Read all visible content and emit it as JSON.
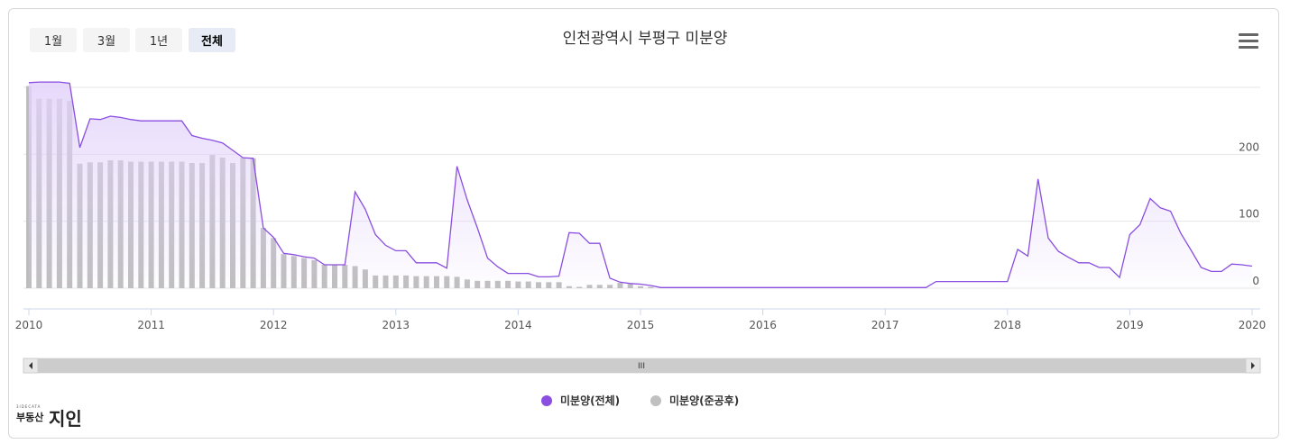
{
  "range_selector": {
    "buttons": [
      {
        "label": "1월",
        "active": false
      },
      {
        "label": "3월",
        "active": false
      },
      {
        "label": "1년",
        "active": false
      },
      {
        "label": "전체",
        "active": true
      }
    ]
  },
  "title": "인천광역시 부평구 미분양",
  "menu_icon": "hamburger-menu-icon",
  "navigator": {
    "handle_label": "III"
  },
  "logo": {
    "small_text": "3IDECATA",
    "main_text": "부동산",
    "big_text": "지인"
  },
  "colors": {
    "total_line": "#8a4ee0",
    "total_fill": "#e2d2fa",
    "completed_bar": "#bdbdbd",
    "completed_dot": "#c0c0c0",
    "total_dot": "#8a4ee0"
  },
  "chart_data": {
    "type": "area",
    "title": "인천광역시 부평구 미분양",
    "x_axis": {
      "type": "date",
      "range": [
        "2010-01",
        "2020-01"
      ],
      "tick_labels": [
        "2010",
        "2011",
        "2012",
        "2013",
        "2014",
        "2015",
        "2016",
        "2017",
        "2018",
        "2019",
        "2020"
      ]
    },
    "y_axis": {
      "side": "right",
      "range": [
        0,
        300
      ],
      "tick_labels": [
        "0",
        "100",
        "200"
      ],
      "ticks": [
        0,
        100,
        200,
        300
      ],
      "grid": true
    },
    "legend": {
      "placement": "bottom-center"
    },
    "series": [
      {
        "name": "미분양(전체)",
        "type": "area",
        "points": [
          [
            "2010-01",
            307
          ],
          [
            "2010-02",
            308
          ],
          [
            "2010-03",
            308
          ],
          [
            "2010-04",
            308
          ],
          [
            "2010-05",
            306
          ],
          [
            "2010-06",
            210
          ],
          [
            "2010-07",
            253
          ],
          [
            "2010-08",
            252
          ],
          [
            "2010-09",
            257
          ],
          [
            "2010-10",
            255
          ],
          [
            "2010-11",
            252
          ],
          [
            "2010-12",
            250
          ],
          [
            "2011-01",
            250
          ],
          [
            "2011-02",
            250
          ],
          [
            "2011-03",
            250
          ],
          [
            "2011-04",
            250
          ],
          [
            "2011-05",
            228
          ],
          [
            "2011-06",
            224
          ],
          [
            "2011-07",
            221
          ],
          [
            "2011-08",
            217
          ],
          [
            "2011-09",
            206
          ],
          [
            "2011-10",
            195
          ],
          [
            "2011-11",
            194
          ],
          [
            "2011-12",
            90
          ],
          [
            "2012-01",
            76
          ],
          [
            "2012-02",
            52
          ],
          [
            "2012-03",
            50
          ],
          [
            "2012-04",
            47
          ],
          [
            "2012-05",
            45
          ],
          [
            "2012-06",
            35
          ],
          [
            "2012-07",
            35
          ],
          [
            "2012-08",
            35
          ],
          [
            "2012-09",
            144
          ],
          [
            "2012-10",
            118
          ],
          [
            "2012-11",
            80
          ],
          [
            "2012-12",
            64
          ],
          [
            "2013-01",
            56
          ],
          [
            "2013-02",
            56
          ],
          [
            "2013-03",
            38
          ],
          [
            "2013-04",
            38
          ],
          [
            "2013-05",
            38
          ],
          [
            "2013-06",
            30
          ],
          [
            "2013-07",
            182
          ],
          [
            "2013-08",
            132
          ],
          [
            "2013-09",
            90
          ],
          [
            "2013-10",
            45
          ],
          [
            "2013-11",
            32
          ],
          [
            "2013-12",
            22
          ],
          [
            "2014-01",
            22
          ],
          [
            "2014-02",
            22
          ],
          [
            "2014-03",
            17
          ],
          [
            "2014-04",
            17
          ],
          [
            "2014-05",
            18
          ],
          [
            "2014-06",
            83
          ],
          [
            "2014-07",
            82
          ],
          [
            "2014-08",
            67
          ],
          [
            "2014-09",
            67
          ],
          [
            "2014-10",
            15
          ],
          [
            "2014-11",
            9
          ],
          [
            "2014-12",
            7
          ],
          [
            "2015-01",
            6
          ],
          [
            "2015-02",
            4
          ],
          [
            "2015-03",
            1
          ],
          [
            "2015-04",
            1
          ],
          [
            "2015-05",
            1
          ],
          [
            "2015-06",
            1
          ],
          [
            "2015-07",
            1
          ],
          [
            "2015-08",
            1
          ],
          [
            "2015-09",
            1
          ],
          [
            "2015-10",
            1
          ],
          [
            "2015-11",
            1
          ],
          [
            "2015-12",
            1
          ],
          [
            "2016-01",
            1
          ],
          [
            "2016-02",
            1
          ],
          [
            "2016-03",
            1
          ],
          [
            "2016-04",
            1
          ],
          [
            "2016-05",
            1
          ],
          [
            "2016-06",
            1
          ],
          [
            "2016-07",
            1
          ],
          [
            "2016-08",
            1
          ],
          [
            "2016-09",
            1
          ],
          [
            "2016-10",
            1
          ],
          [
            "2016-11",
            1
          ],
          [
            "2016-12",
            1
          ],
          [
            "2017-01",
            1
          ],
          [
            "2017-02",
            1
          ],
          [
            "2017-03",
            1
          ],
          [
            "2017-04",
            1
          ],
          [
            "2017-05",
            1
          ],
          [
            "2017-06",
            10
          ],
          [
            "2017-07",
            10
          ],
          [
            "2017-08",
            10
          ],
          [
            "2017-09",
            10
          ],
          [
            "2017-10",
            10
          ],
          [
            "2017-11",
            10
          ],
          [
            "2017-12",
            10
          ],
          [
            "2018-01",
            10
          ],
          [
            "2018-02",
            58
          ],
          [
            "2018-03",
            48
          ],
          [
            "2018-04",
            163
          ],
          [
            "2018-05",
            75
          ],
          [
            "2018-06",
            55
          ],
          [
            "2018-07",
            46
          ],
          [
            "2018-08",
            38
          ],
          [
            "2018-09",
            38
          ],
          [
            "2018-10",
            31
          ],
          [
            "2018-11",
            31
          ],
          [
            "2018-12",
            16
          ],
          [
            "2019-01",
            80
          ],
          [
            "2019-02",
            95
          ],
          [
            "2019-03",
            134
          ],
          [
            "2019-04",
            120
          ],
          [
            "2019-05",
            115
          ],
          [
            "2019-06",
            82
          ],
          [
            "2019-07",
            57
          ],
          [
            "2019-08",
            31
          ],
          [
            "2019-09",
            25
          ],
          [
            "2019-10",
            25
          ],
          [
            "2019-11",
            36
          ],
          [
            "2019-12",
            35
          ],
          [
            "2020-01",
            33
          ]
        ]
      },
      {
        "name": "미분양(준공후)",
        "type": "bar",
        "points": [
          [
            "2010-01",
            302
          ],
          [
            "2010-02",
            283
          ],
          [
            "2010-03",
            283
          ],
          [
            "2010-04",
            283
          ],
          [
            "2010-05",
            280
          ],
          [
            "2010-06",
            186
          ],
          [
            "2010-07",
            188
          ],
          [
            "2010-08",
            188
          ],
          [
            "2010-09",
            191
          ],
          [
            "2010-10",
            191
          ],
          [
            "2010-11",
            189
          ],
          [
            "2010-12",
            189
          ],
          [
            "2011-01",
            189
          ],
          [
            "2011-02",
            189
          ],
          [
            "2011-03",
            189
          ],
          [
            "2011-04",
            189
          ],
          [
            "2011-05",
            187
          ],
          [
            "2011-06",
            187
          ],
          [
            "2011-07",
            199
          ],
          [
            "2011-08",
            195
          ],
          [
            "2011-09",
            187
          ],
          [
            "2011-10",
            195
          ],
          [
            "2011-11",
            194
          ],
          [
            "2011-12",
            90
          ],
          [
            "2012-01",
            75
          ],
          [
            "2012-02",
            51
          ],
          [
            "2012-03",
            48
          ],
          [
            "2012-04",
            45
          ],
          [
            "2012-05",
            42
          ],
          [
            "2012-06",
            35
          ],
          [
            "2012-07",
            35
          ],
          [
            "2012-08",
            35
          ],
          [
            "2012-09",
            33
          ],
          [
            "2012-10",
            28
          ],
          [
            "2012-11",
            19
          ],
          [
            "2012-12",
            19
          ],
          [
            "2013-01",
            19
          ],
          [
            "2013-02",
            19
          ],
          [
            "2013-03",
            18
          ],
          [
            "2013-04",
            18
          ],
          [
            "2013-05",
            18
          ],
          [
            "2013-06",
            18
          ],
          [
            "2013-07",
            17
          ],
          [
            "2013-08",
            13
          ],
          [
            "2013-09",
            11
          ],
          [
            "2013-10",
            11
          ],
          [
            "2013-11",
            11
          ],
          [
            "2013-12",
            11
          ],
          [
            "2014-01",
            10
          ],
          [
            "2014-02",
            10
          ],
          [
            "2014-03",
            9
          ],
          [
            "2014-04",
            9
          ],
          [
            "2014-05",
            9
          ],
          [
            "2014-06",
            3
          ],
          [
            "2014-07",
            2
          ],
          [
            "2014-08",
            5
          ],
          [
            "2014-09",
            5
          ],
          [
            "2014-10",
            5
          ],
          [
            "2014-11",
            8
          ],
          [
            "2014-12",
            6
          ],
          [
            "2015-01",
            3
          ],
          [
            "2015-02",
            2
          ],
          [
            "2015-03",
            0
          ]
        ]
      }
    ]
  }
}
